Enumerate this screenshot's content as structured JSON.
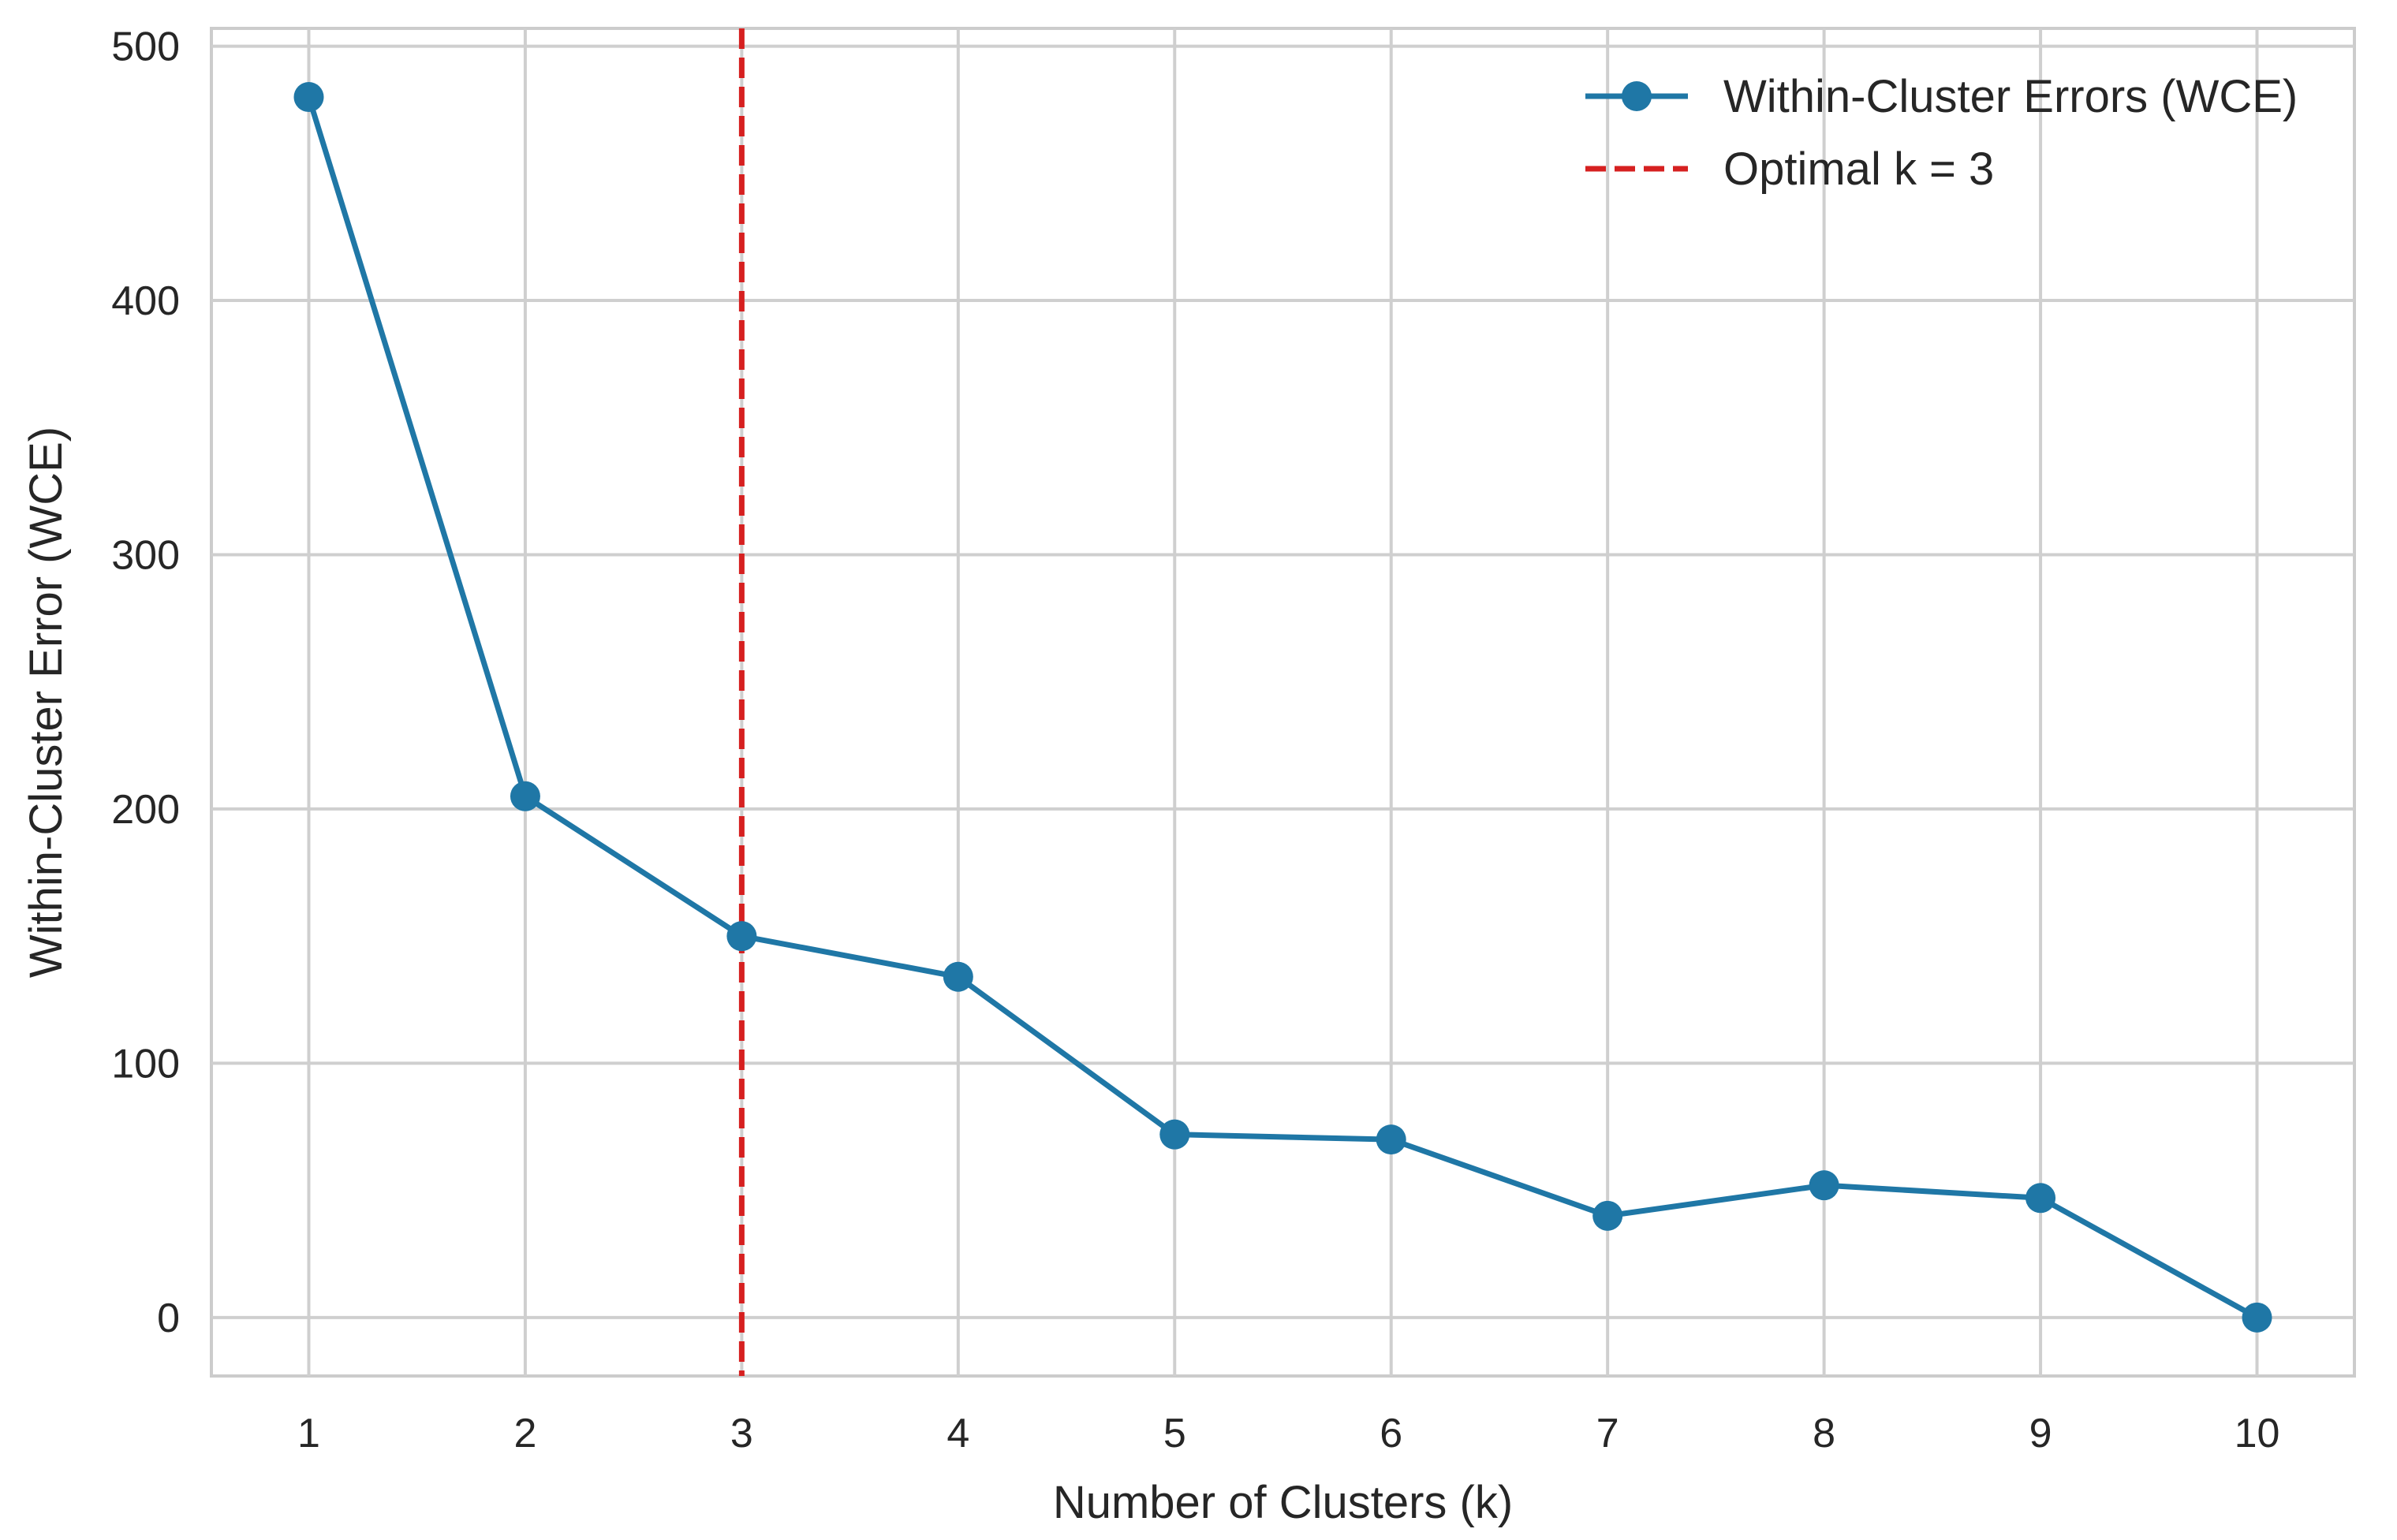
{
  "chart_data": {
    "type": "line",
    "title": "",
    "xlabel": "Number of Clusters (k)",
    "ylabel": "Within-Cluster Error (WCE)",
    "x": [
      1,
      2,
      3,
      4,
      5,
      6,
      7,
      8,
      9,
      10
    ],
    "xticks": [
      "1",
      "2",
      "3",
      "4",
      "5",
      "6",
      "7",
      "8",
      "9",
      "10"
    ],
    "yticks": [
      "0",
      "100",
      "200",
      "300",
      "400",
      "500"
    ],
    "xlim": [
      0.55,
      10.45
    ],
    "ylim": [
      -23,
      507
    ],
    "grid": true,
    "legend_position": "top-right",
    "series": [
      {
        "name": "Within-Cluster Errors (WCE)",
        "values": [
          480,
          205,
          150,
          134,
          72,
          70,
          40,
          52,
          47,
          0
        ],
        "color": "#1f77a6",
        "marker": "circle"
      }
    ],
    "vline": {
      "x": 3,
      "label": "Optimal k = 3",
      "color": "#d62020",
      "style": "dashed"
    }
  }
}
